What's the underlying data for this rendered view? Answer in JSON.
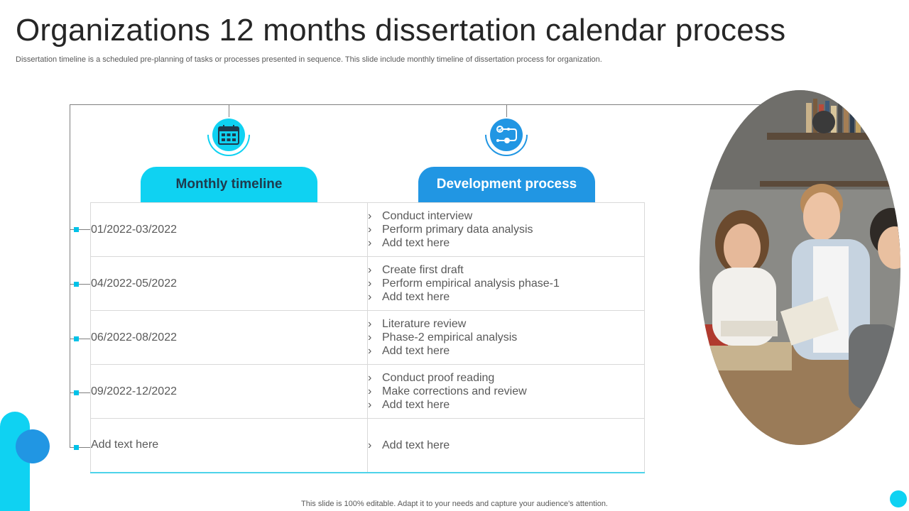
{
  "title": "Organizations 12 months dissertation calendar process",
  "subtitle": "Dissertation timeline is a scheduled pre-planning of tasks or processes presented in sequence. This slide include monthly timeline of dissertation process for organization.",
  "columns": {
    "left_header": "Monthly timeline",
    "right_header": "Development process",
    "left_icon": "calendar-icon",
    "right_icon": "process-flow-icon"
  },
  "rows": [
    {
      "period": "01/2022-03/2022",
      "items": [
        "Conduct interview",
        "Perform primary data analysis",
        "Add text here"
      ]
    },
    {
      "period": "04/2022-05/2022",
      "items": [
        "Create first draft",
        "Perform empirical analysis phase-1",
        "Add text here"
      ]
    },
    {
      "period": "06/2022-08/2022",
      "items": [
        "Literature review",
        "Phase-2 empirical analysis",
        "Add text here"
      ]
    },
    {
      "period": "09/2022-12/2022",
      "items": [
        "Conduct proof reading",
        "Make corrections and review",
        "Add text here"
      ]
    },
    {
      "period": "Add text here",
      "items": [
        "Add text here"
      ]
    }
  ],
  "bullet_glyph": "›",
  "footer": "This slide is 100% editable. Adapt it to your needs and capture your audience's attention.",
  "colors": {
    "accent_cyan": "#0fd2f2",
    "accent_blue": "#2196e3",
    "title_text": "#262626",
    "body_text": "#595959"
  }
}
